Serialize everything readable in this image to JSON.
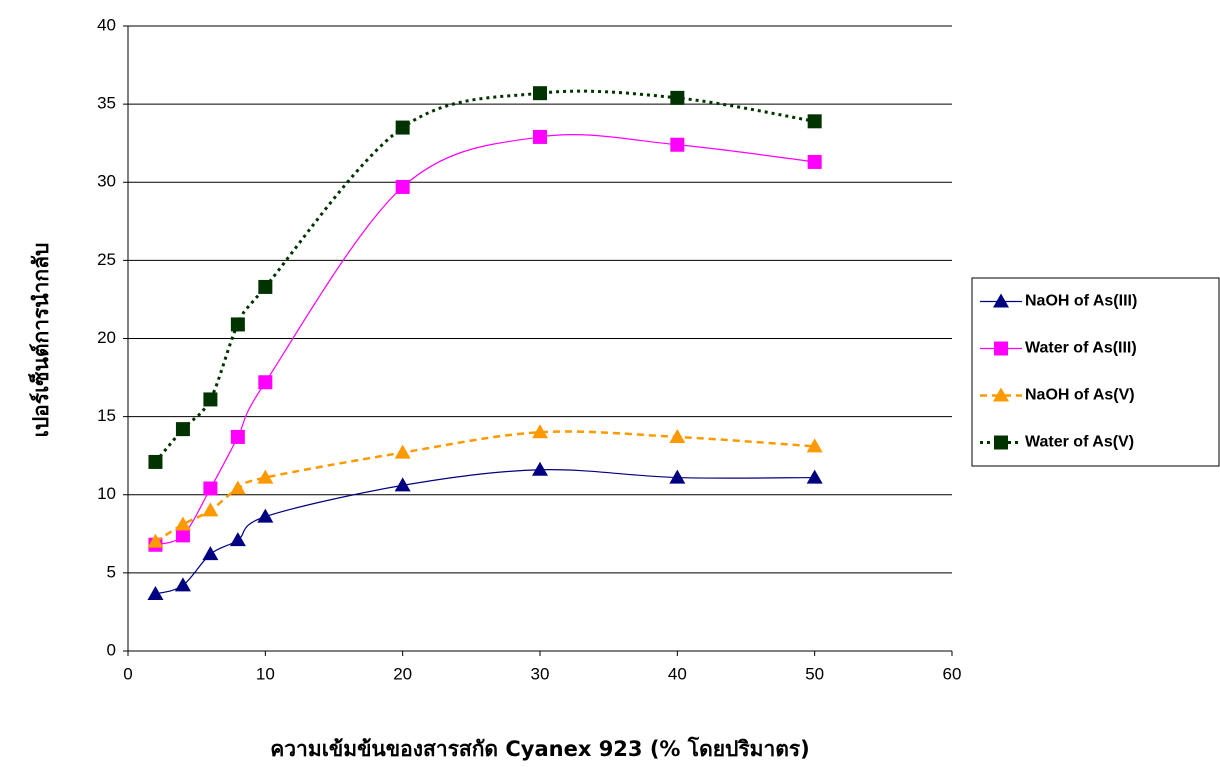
{
  "chart_data": {
    "type": "line",
    "x_label": "ความเข้มข้นของสารสกัด Cyanex 923 (% โดยปริมาตร)",
    "y_label": "เปอร์เซ็นต์การนำกลับ",
    "x": [
      2,
      4,
      6,
      8,
      10,
      20,
      30,
      40,
      50
    ],
    "series": [
      {
        "name": "NaOH of As(III)",
        "color": "#000080",
        "marker": "triangle",
        "line_style": "solid",
        "values": [
          3.65,
          4.2,
          6.2,
          7.1,
          8.6,
          10.6,
          11.6,
          11.1,
          11.1
        ]
      },
      {
        "name": "Water of As(III)",
        "color": "#ff00ff",
        "marker": "square",
        "line_style": "solid",
        "values": [
          6.8,
          7.4,
          10.4,
          13.7,
          17.2,
          29.7,
          32.9,
          32.4,
          31.3
        ]
      },
      {
        "name": "NaOH of As(V)",
        "color": "#ff9900",
        "marker": "triangle",
        "line_style": "dashed",
        "values": [
          7.0,
          8.1,
          9.0,
          10.4,
          11.1,
          12.7,
          14.0,
          13.7,
          13.1
        ]
      },
      {
        "name": "Water of As(V)",
        "color": "#003300",
        "marker": "square",
        "line_style": "dotted",
        "values": [
          12.1,
          14.2,
          16.1,
          20.9,
          23.3,
          33.5,
          35.7,
          35.4,
          33.9
        ]
      }
    ],
    "xlim": [
      0,
      60
    ],
    "xticks": [
      0,
      10,
      20,
      30,
      40,
      50,
      60
    ],
    "ylim": [
      0,
      40
    ],
    "yticks": [
      0,
      5,
      10,
      15,
      20,
      25,
      30,
      35,
      40
    ],
    "grid": true,
    "legend": "right"
  }
}
